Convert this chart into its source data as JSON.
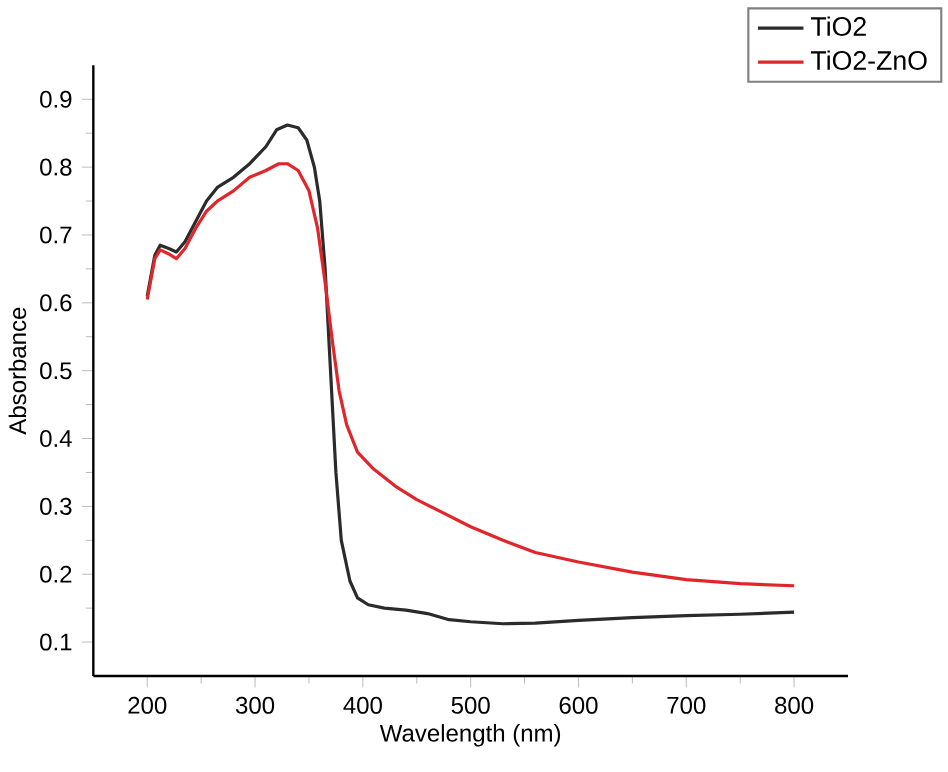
{
  "chart_data": {
    "type": "line",
    "xlabel": "Wavelength (nm)",
    "ylabel": "Absorbance",
    "xlim": [
      150,
      850
    ],
    "ylim": [
      0.05,
      0.95
    ],
    "xticks": [
      200,
      300,
      400,
      500,
      600,
      700,
      800
    ],
    "yticks": [
      0.1,
      0.2,
      0.3,
      0.4,
      0.5,
      0.6,
      0.7,
      0.8,
      0.9
    ],
    "legend": "top right",
    "grid": false,
    "series": [
      {
        "name": "TiO2",
        "color": "#2b2b2b",
        "x": [
          200,
          207,
          212,
          220,
          227,
          235,
          245,
          255,
          265,
          280,
          295,
          310,
          320,
          330,
          340,
          348,
          355,
          360,
          365,
          370,
          375,
          380,
          388,
          395,
          405,
          420,
          440,
          460,
          480,
          500,
          530,
          560,
          600,
          650,
          700,
          750,
          800
        ],
        "values": [
          0.61,
          0.67,
          0.685,
          0.68,
          0.675,
          0.69,
          0.72,
          0.75,
          0.77,
          0.785,
          0.805,
          0.83,
          0.855,
          0.862,
          0.858,
          0.84,
          0.8,
          0.75,
          0.65,
          0.5,
          0.35,
          0.25,
          0.19,
          0.165,
          0.155,
          0.15,
          0.147,
          0.142,
          0.133,
          0.13,
          0.127,
          0.128,
          0.132,
          0.136,
          0.139,
          0.141,
          0.144
        ]
      },
      {
        "name": "TiO2-ZnO",
        "color": "#e0262b",
        "x": [
          200,
          207,
          212,
          220,
          227,
          235,
          245,
          255,
          265,
          280,
          295,
          310,
          322,
          330,
          340,
          350,
          358,
          365,
          372,
          378,
          385,
          395,
          410,
          430,
          450,
          475,
          500,
          530,
          560,
          600,
          650,
          700,
          750,
          800
        ],
        "values": [
          0.605,
          0.665,
          0.678,
          0.672,
          0.665,
          0.68,
          0.71,
          0.735,
          0.75,
          0.765,
          0.785,
          0.795,
          0.805,
          0.805,
          0.795,
          0.765,
          0.71,
          0.63,
          0.54,
          0.47,
          0.42,
          0.38,
          0.355,
          0.33,
          0.31,
          0.29,
          0.27,
          0.25,
          0.232,
          0.218,
          0.203,
          0.192,
          0.186,
          0.183
        ]
      }
    ]
  }
}
